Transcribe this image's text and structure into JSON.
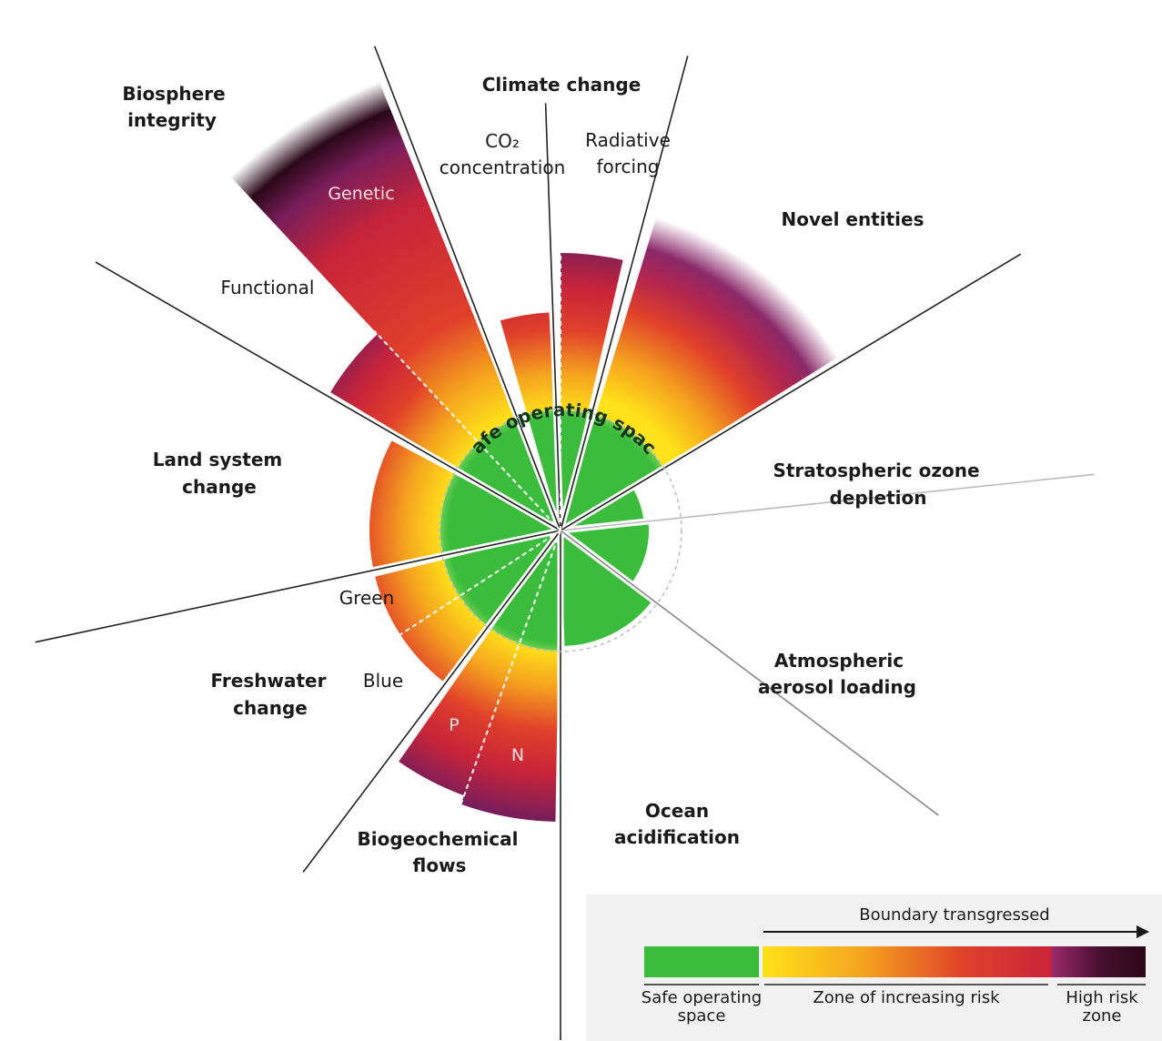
{
  "boundaries": {
    "climate_change": "Climate change",
    "co2_line1": "CO₂",
    "co2_line2": "concentration",
    "radiative_line1": "Radiative",
    "radiative_line2": "forcing",
    "novel_entities": "Novel entities",
    "ozone_line1": "Stratospheric ozone",
    "ozone_line2": "depletion",
    "aerosol_line1": "Atmospheric",
    "aerosol_line2": "aerosol loading",
    "ocean_line1": "Ocean",
    "ocean_line2": "acidification",
    "biogeo_line1": "Biogeochemical",
    "biogeo_line2": "flows",
    "fresh_line1": "Freshwater",
    "fresh_line2": "change",
    "land_line1": "Land system",
    "land_line2": "change",
    "bio_line1": "Biosphere",
    "bio_line2": "integrity"
  },
  "sub_labels": {
    "genetic": "Genetic",
    "functional": "Functional",
    "green": "Green",
    "blue": "Blue",
    "p": "P",
    "n": "N"
  },
  "center_label": "Safe operating space",
  "legend": {
    "title": "Boundary transgressed",
    "safe_line1": "Safe operating",
    "safe_line2": "space",
    "zone": "Zone of increasing risk",
    "high_line1": "High risk",
    "high_line2": "zone"
  },
  "colors": {
    "safe": "#3cbc3c",
    "yellow": "#ffe21a",
    "orange": "#f08a1c",
    "red": "#d42a2a",
    "purple": "#7a1e5a",
    "dark": "#2a0818"
  }
}
